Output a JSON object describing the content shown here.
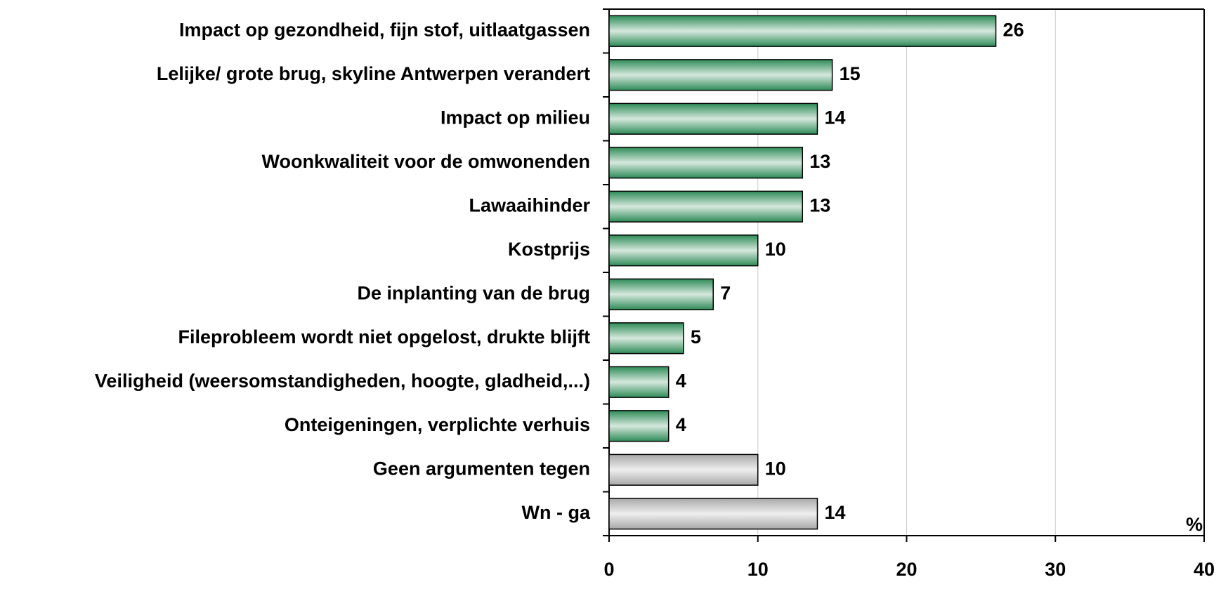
{
  "chart_data": {
    "type": "barh",
    "categories": [
      "Impact op gezondheid, fijn stof, uitlaatgassen",
      "Lelijke/ grote brug, skyline Antwerpen verandert",
      "Impact op milieu",
      "Woonkwaliteit voor de omwonenden",
      "Lawaaihinder",
      "Kostprijs",
      "De inplanting van de brug",
      "Fileprobleem wordt niet opgelost, drukte blijft",
      "Veiligheid (weersomstandigheden, hoogte, gladheid,...)",
      "Onteigeningen, verplichte verhuis",
      "Geen argumenten tegen",
      "Wn - ga"
    ],
    "values": [
      26,
      15,
      14,
      13,
      13,
      10,
      7,
      5,
      4,
      4,
      10,
      14
    ],
    "colors": [
      "#2e8b57",
      "#2e8b57",
      "#2e8b57",
      "#2e8b57",
      "#2e8b57",
      "#2e8b57",
      "#2e8b57",
      "#2e8b57",
      "#2e8b57",
      "#2e8b57",
      "#a8a8a8",
      "#a8a8a8"
    ],
    "xlim": [
      0,
      40
    ],
    "xticks": [
      0,
      10,
      20,
      30,
      40
    ],
    "xlabel": "%",
    "grid": true
  }
}
